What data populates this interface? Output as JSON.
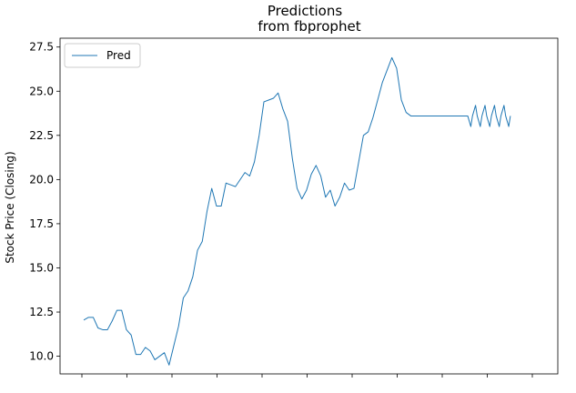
{
  "chart_data": {
    "type": "line",
    "title": [
      "Predictions",
      "from fbprophet"
    ],
    "xlabel": "",
    "ylabel": "Stock Price (Closing)",
    "ylim": [
      9.0,
      28.0
    ],
    "xlim": [
      -5,
      100
    ],
    "yticks": [
      "10.0",
      "12.5",
      "15.0",
      "17.5",
      "20.0",
      "22.5",
      "25.0",
      "27.5"
    ],
    "ytick_values": [
      10.0,
      12.5,
      15.0,
      17.5,
      20.0,
      22.5,
      25.0,
      27.5
    ],
    "xtick_count": 11,
    "grid": false,
    "legend": {
      "position": "upper-left"
    },
    "series": [
      {
        "name": "Pred",
        "color": "#1f77b4",
        "x": [
          0,
          1,
          2,
          3,
          4,
          5,
          6,
          7,
          8,
          9,
          10,
          11,
          12,
          13,
          14,
          15,
          16,
          17,
          18,
          19,
          20,
          21,
          22,
          23,
          24,
          25,
          26,
          27,
          28,
          29,
          30,
          31,
          32,
          33,
          34,
          35,
          36,
          37,
          38,
          39,
          40,
          41,
          42,
          43,
          44,
          45,
          46,
          47,
          48,
          49,
          50,
          51,
          52,
          53,
          54,
          55,
          56,
          57,
          58,
          59,
          60,
          61,
          62,
          63,
          64,
          65,
          66,
          67,
          68,
          69,
          70,
          71,
          72,
          73,
          74,
          75,
          76,
          77,
          78,
          79,
          80,
          81,
          82,
          83,
          84,
          85,
          86,
          87,
          88,
          89,
          90
        ],
        "values": [
          12.05,
          12.2,
          12.2,
          11.6,
          11.5,
          11.5,
          12.0,
          12.6,
          12.6,
          11.5,
          11.2,
          10.1,
          10.1,
          10.5,
          10.3,
          9.8,
          10.0,
          10.2,
          9.5,
          10.6,
          11.7,
          13.3,
          13.7,
          14.5,
          16.0,
          16.5,
          18.2,
          19.5,
          18.5,
          18.5,
          19.8,
          19.7,
          19.6,
          20.0,
          20.4,
          20.2,
          21.0,
          22.5,
          24.4,
          24.5,
          24.6,
          24.9,
          24.0,
          23.3,
          21.2,
          19.5,
          18.9,
          19.4,
          20.3,
          20.8,
          20.2,
          19.0,
          19.4,
          18.5,
          19.0,
          19.8,
          19.4,
          19.5,
          21.0,
          22.5,
          22.7,
          23.5,
          24.5,
          25.5,
          26.2,
          26.9,
          26.3,
          24.5,
          23.8,
          23.6,
          23.6,
          23.6,
          23.6,
          23.6,
          23.6,
          23.6,
          23.6,
          23.6,
          23.6,
          23.6,
          23.6,
          23.6,
          23.6,
          23.6,
          23.6,
          23.6,
          23.6,
          23.6,
          23.6,
          23.6,
          23.6
        ]
      }
    ]
  }
}
